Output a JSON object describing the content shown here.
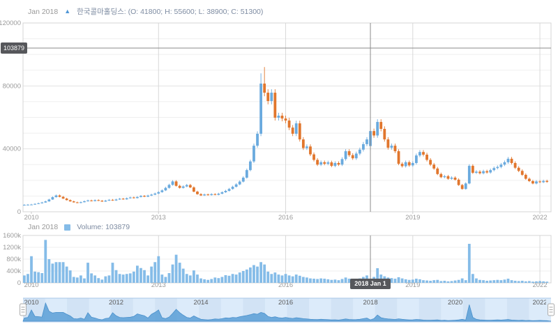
{
  "chart": {
    "main_legend": {
      "period": "Jan 2018",
      "series_text": "한국콜마홀딩스: (O: 41800; H: 55600; L: 38900; C: 51300)"
    },
    "volume_legend": {
      "period": "Jan 2018",
      "label": "Volume: 103879"
    },
    "crosshair": {
      "price_label": "103879",
      "date_label": "2018 Jan 1"
    }
  },
  "chart_data": {
    "type": "candlestick",
    "title": "한국콜마홀딩스",
    "start": "2009-11",
    "interval": "month",
    "panels": [
      "price",
      "volume",
      "navigator"
    ],
    "close": [
      4400,
      4500,
      4600,
      5000,
      5400,
      5900,
      6600,
      7800,
      9300,
      10400,
      9500,
      8400,
      7400,
      6600,
      6000,
      5600,
      6100,
      6700,
      7200,
      6800,
      7400,
      7000,
      6500,
      7100,
      7600,
      7200,
      7800,
      8300,
      7900,
      8600,
      9100,
      8700,
      9400,
      10100,
      9600,
      10300,
      10900,
      11600,
      12500,
      13600,
      15200,
      17100,
      19300,
      16500,
      15200,
      16100,
      17000,
      15500,
      12800,
      11200,
      10400,
      11000,
      10600,
      11200,
      10800,
      11500,
      12400,
      13300,
      14500,
      15900,
      17400,
      19200,
      21700,
      26500,
      32000,
      42000,
      49600,
      81500,
      75700,
      70400,
      75700,
      59800,
      61100,
      59300,
      58000,
      53500,
      49600,
      56200,
      46000,
      40500,
      41500,
      36500,
      33000,
      30000,
      31500,
      30500,
      31400,
      29200,
      31000,
      30000,
      33500,
      38500,
      36000,
      34000,
      37000,
      39500,
      43000,
      46000,
      51300,
      48500,
      57100,
      52700,
      46000,
      40700,
      42000,
      38500,
      30500,
      29000,
      31500,
      29500,
      31000,
      35800,
      38000,
      36300,
      33000,
      30000,
      27500,
      24000,
      22000,
      22600,
      21000,
      21700,
      20400,
      17000,
      14500,
      18000,
      29200,
      24800,
      25500,
      24500,
      25800,
      25000,
      26500,
      27800,
      28500,
      30000,
      31500,
      33700,
      31000,
      28000,
      26000,
      23500,
      21000,
      19500,
      18000,
      19300,
      18800,
      19600,
      19000
    ],
    "volume": [
      250000,
      300000,
      900000,
      380000,
      360000,
      330000,
      1450000,
      800000,
      650000,
      700000,
      700000,
      700000,
      550000,
      420000,
      200000,
      180000,
      250000,
      150000,
      680000,
      320000,
      250000,
      160000,
      110000,
      220000,
      250000,
      680000,
      430000,
      300000,
      280000,
      300000,
      320000,
      380000,
      580000,
      500000,
      430000,
      250000,
      550000,
      700000,
      900000,
      280000,
      200000,
      330000,
      620000,
      950000,
      680000,
      480000,
      300000,
      250000,
      420000,
      280000,
      150000,
      120000,
      100000,
      130000,
      180000,
      160000,
      200000,
      260000,
      240000,
      300000,
      280000,
      350000,
      400000,
      450000,
      520000,
      600000,
      550000,
      700000,
      620000,
      380000,
      300000,
      350000,
      280000,
      250000,
      300000,
      250000,
      220000,
      280000,
      240000,
      200000,
      180000,
      150000,
      140000,
      130000,
      150000,
      140000,
      120000,
      100000,
      110000,
      90000,
      130000,
      180000,
      140000,
      120000,
      130000,
      150000,
      200000,
      250000,
      103879,
      200000,
      494000,
      280000,
      220000,
      180000,
      160000,
      140000,
      190000,
      150000,
      120000,
      100000,
      110000,
      140000,
      120000,
      90000,
      80000,
      70000,
      90000,
      100000,
      60000,
      70000,
      50000,
      60000,
      80000,
      100000,
      150000,
      90000,
      1318000,
      300000,
      150000,
      100000,
      90000,
      70000,
      80000,
      90000,
      100000,
      90000,
      110000,
      140000,
      90000,
      70000,
      60000,
      70000,
      50000,
      60000,
      40000,
      50000,
      60000,
      50000,
      40000
    ],
    "highlighted": {
      "date": "2018-01",
      "index": 98,
      "open": 41800,
      "high": 55600,
      "low": 38900,
      "close": 51300,
      "volume": 103879
    },
    "high_overrides": {
      "67": 88000,
      "68": 92000
    },
    "price_axis": {
      "min": 0,
      "max": 120000,
      "tick_labels": [
        "0",
        "40000",
        "80000",
        "120000"
      ],
      "tick_values": [
        0,
        40000,
        80000,
        120000
      ],
      "minor_step": 10000
    },
    "volume_axis": {
      "min": 0,
      "max": 1600000,
      "tick_labels": [
        "0",
        "400k",
        "800k",
        "1200k",
        "1600k"
      ],
      "tick_values": [
        0,
        400000,
        800000,
        1200000,
        1600000
      ]
    },
    "x_tick_labels": [
      "2010",
      "2013",
      "2016",
      "2019",
      "2022"
    ],
    "x_tick_indices": [
      2,
      38,
      74,
      110,
      146
    ],
    "navigator_labels": [
      "2010",
      "2012",
      "2014",
      "2016",
      "2018",
      "2020",
      "2022"
    ],
    "navigator_label_indices": [
      2,
      26,
      50,
      74,
      98,
      122,
      146
    ],
    "colors": {
      "up": "#6aaade",
      "down": "#e1762d",
      "volume": "#85bce8",
      "navigator_fill": "#dcebfa",
      "navigator_stripe": "#d2e3f5",
      "navigator_border": "#a9c7e8",
      "navigator_line": "#4b91cc",
      "navigator_area": "#5b9fd6",
      "crosshair": "#8a8a8a",
      "badge_bg": "#56575b",
      "grid": "#efefef",
      "grid_major": "#e2e2e2",
      "grid_year": "#d8d8d8",
      "axis_text": "#9b9b9b"
    }
  }
}
